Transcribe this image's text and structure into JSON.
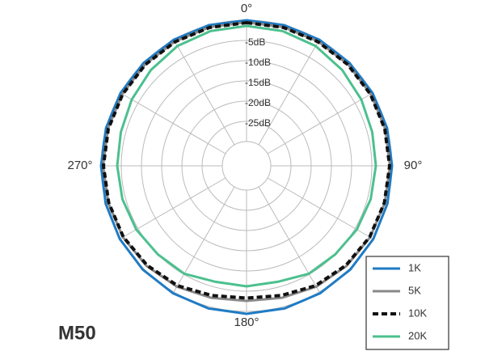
{
  "chart_data": {
    "type": "polar",
    "title": "M50",
    "theta": [
      0,
      15,
      30,
      45,
      60,
      75,
      90,
      105,
      120,
      135,
      150,
      165,
      180,
      195,
      210,
      225,
      240,
      255,
      270,
      285,
      300,
      315,
      330,
      345
    ],
    "rlim": [
      -30,
      0
    ],
    "rticks": [
      {
        "value": -5,
        "label": "-5dB"
      },
      {
        "value": -10,
        "label": "-10dB"
      },
      {
        "value": -15,
        "label": "-15dB"
      },
      {
        "value": -20,
        "label": "-20dB"
      },
      {
        "value": -25,
        "label": "-25dB"
      }
    ],
    "rgrid": [
      -30,
      -25,
      -20,
      -15,
      -10,
      -5,
      0
    ],
    "thetagrid": [
      0,
      30,
      60,
      90,
      120,
      150,
      180,
      210,
      240,
      270,
      300,
      330
    ],
    "thetaticks": [
      {
        "value": 0,
        "label": "0°"
      },
      {
        "value": 90,
        "label": "90°"
      },
      {
        "value": 180,
        "label": "180°"
      },
      {
        "value": 270,
        "label": "270°"
      }
    ],
    "legend": "lower right",
    "series": [
      {
        "name": "1K",
        "color": "#1f7bc4",
        "line_style": "solid",
        "values": [
          0,
          0,
          0,
          0,
          0,
          0,
          0,
          0.1,
          0.2,
          0.3,
          0.4,
          0.5,
          0.6,
          0.5,
          0.4,
          0.3,
          0.2,
          0.1,
          0,
          0,
          0,
          0,
          0,
          0
        ]
      },
      {
        "name": "5K",
        "color": "#888888",
        "line_style": "solid",
        "values": [
          -0.5,
          -0.5,
          -0.5,
          -0.5,
          -0.5,
          -0.5,
          -0.5,
          -0.6,
          -0.7,
          -1,
          -1.5,
          -2.2,
          -2.6,
          -2.2,
          -1.5,
          -1,
          -0.7,
          -0.6,
          -0.5,
          -0.5,
          -0.5,
          -0.5,
          -0.5,
          -0.5
        ]
      },
      {
        "name": "10K",
        "color": "#111111",
        "line_style": "dashed",
        "values": [
          -0.6,
          -0.6,
          -0.6,
          -0.6,
          -0.6,
          -0.6,
          -0.6,
          -0.7,
          -0.8,
          -1.2,
          -1.8,
          -2.8,
          -3.3,
          -2.8,
          -1.8,
          -1.2,
          -0.8,
          -0.7,
          -0.6,
          -0.6,
          -0.6,
          -0.6,
          -0.6,
          -0.6
        ]
      },
      {
        "name": "20K",
        "color": "#4cc08e",
        "line_style": "solid",
        "values": [
          -1.4,
          -1.5,
          -1.8,
          -2.5,
          -3.2,
          -3.8,
          -4,
          -4.2,
          -4.5,
          -5,
          -5.2,
          -6.3,
          -6.2,
          -6.3,
          -5.2,
          -5,
          -4.5,
          -4.2,
          -4,
          -3.8,
          -3.2,
          -2.5,
          -1.8,
          -1.5
        ]
      }
    ]
  }
}
